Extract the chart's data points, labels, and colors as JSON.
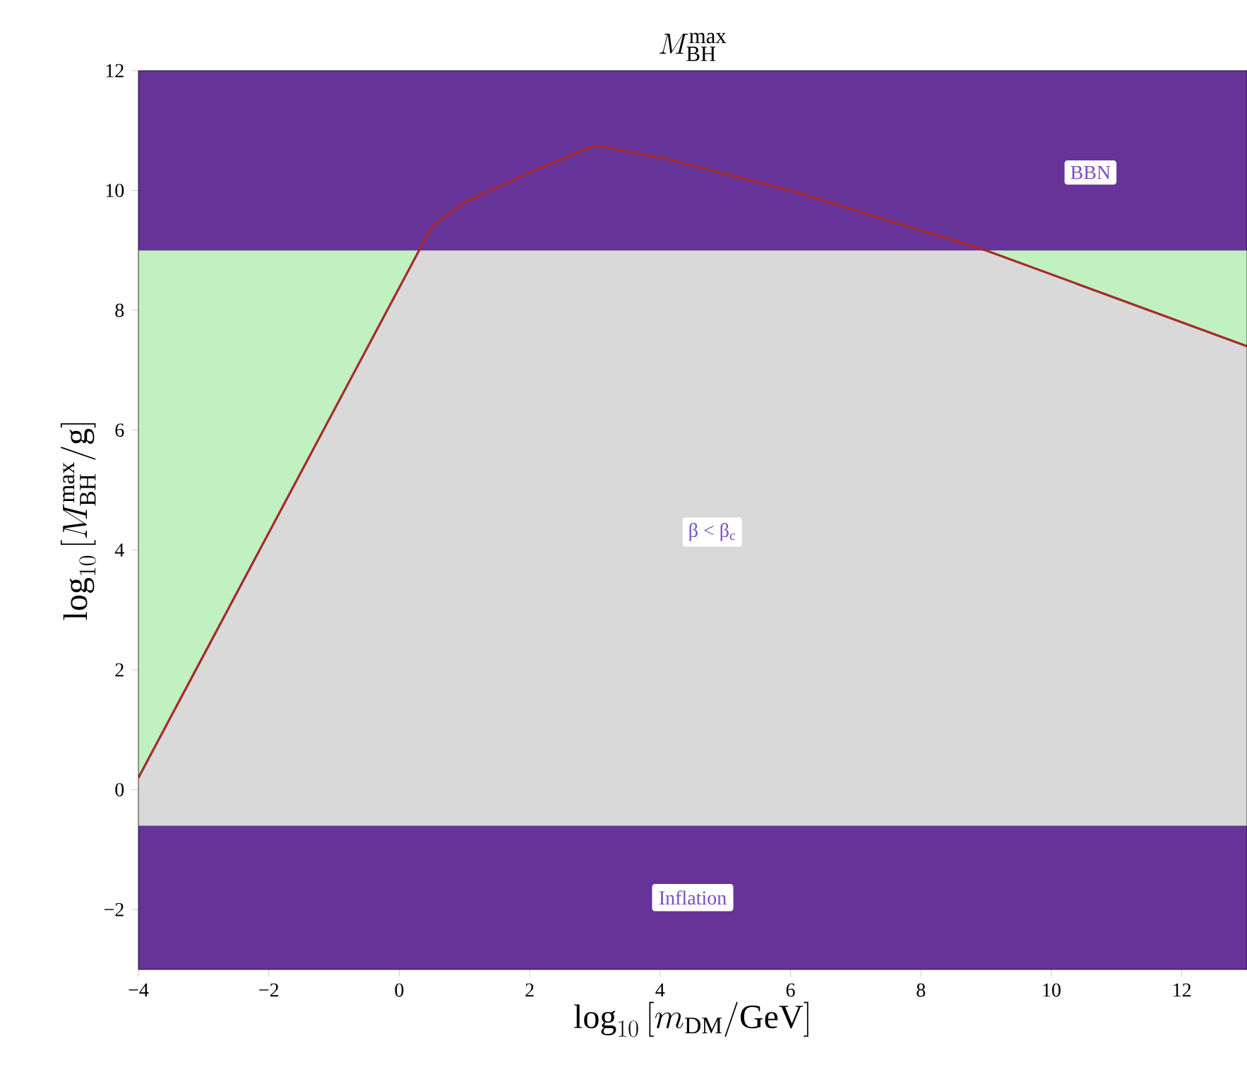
{
  "chart_data": {
    "type": "line",
    "title": "M_{\\rm BH}^{\\rm max}",
    "xlabel": "\\log_{10}\\left[m_{\\rm DM}/{\\rm GeV}\\right]",
    "ylabel": "\\log_{10}\\left[M_{\\rm BH}^{\\rm max}/{\\rm g}\\right]",
    "xlim": [
      -4,
      13
    ],
    "ylim": [
      -3,
      12
    ],
    "xticks": [
      {
        "value": -4,
        "label": "−4"
      },
      {
        "value": -2,
        "label": "−2"
      },
      0,
      2,
      4,
      6,
      8,
      10,
      12
    ],
    "yticks": [
      {
        "value": -2,
        "label": "−2"
      },
      0,
      2,
      4,
      6,
      8,
      10,
      12
    ],
    "series": [
      {
        "type": "area",
        "color": "#d9d9d9",
        "x": [
          -4,
          0.3,
          9,
          13
        ],
        "values": [
          0.2,
          9,
          9,
          7.4
        ]
      },
      {
        "color": "#a52a2a",
        "x": [
          -4,
          0.5,
          1,
          2,
          3,
          4,
          6,
          7.5,
          9,
          13
        ],
        "values": [
          0.2,
          9.4,
          9.8,
          10.3,
          10.75,
          10.55,
          10.0,
          9.5,
          9.0,
          7.4
        ]
      }
    ],
    "bands": [
      {
        "axis": "y",
        "from": -0.6,
        "to": 9,
        "color": "#c1f0c1"
      },
      {
        "axis": "y",
        "from": -0.6,
        "to": 0,
        "color": "#d9d9d9"
      },
      {
        "axis": "y",
        "from": 9,
        "to": 12,
        "color": "#663399"
      },
      {
        "axis": "y",
        "from": -3,
        "to": -0.6,
        "color": "#663399",
        "label": "Inflation"
      }
    ],
    "annotations": [
      {
        "text": "BBN",
        "x": 10.6,
        "y": 10.3
      },
      {
        "text": "β < β$_{c}$",
        "x": 4.8,
        "y": 4.3
      }
    ],
    "grid": false
  }
}
